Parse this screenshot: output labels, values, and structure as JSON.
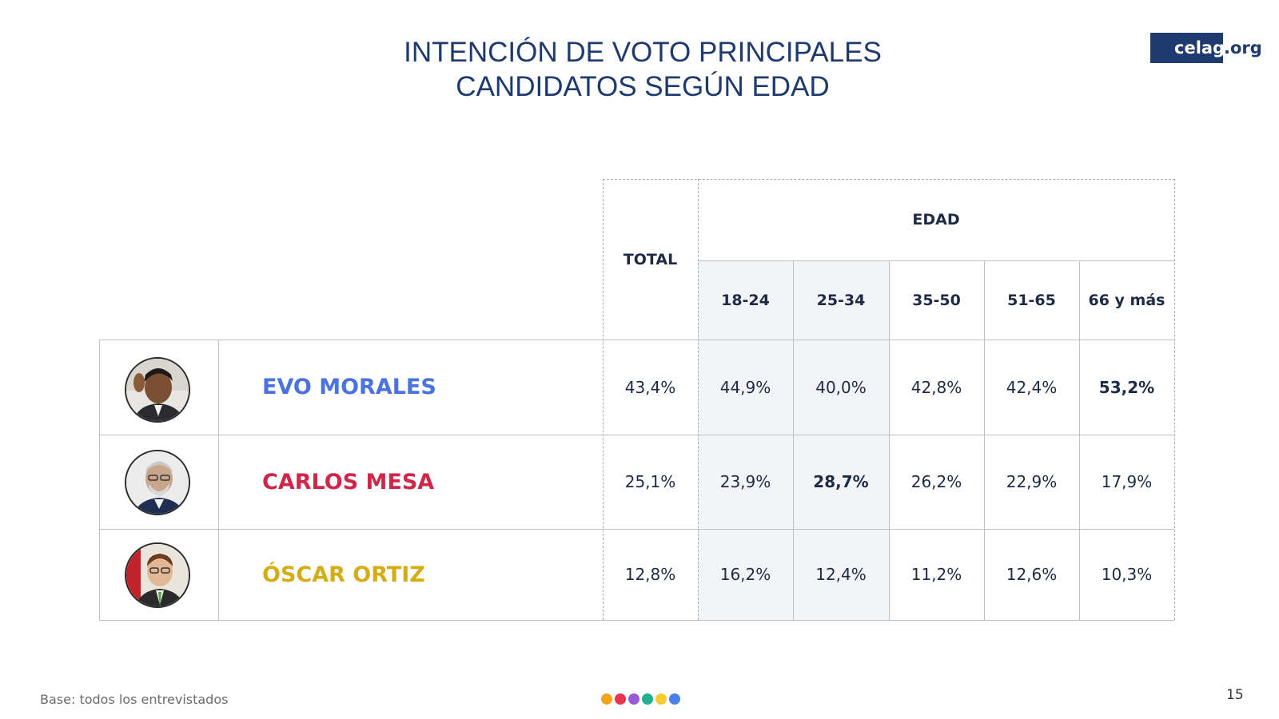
{
  "title": {
    "line1": "INTENCIÓN DE VOTO PRINCIPALES",
    "line2": "CANDIDATOS SEGÚN EDAD"
  },
  "logo": {
    "main": "celag",
    "suffix": ".org"
  },
  "table": {
    "total_header": "TOTAL",
    "group_header": "EDAD",
    "age_headers": [
      "18-24",
      "25-34",
      "35-50",
      "51-65",
      "66 y más"
    ],
    "rows": [
      {
        "name": "EVO MORALES",
        "color": "#4a72e0",
        "avatar": "evo-morales-photo",
        "total": "43,4%",
        "values": [
          "44,9%",
          "40,0%",
          "42,8%",
          "42,4%",
          "53,2%"
        ]
      },
      {
        "name": "CARLOS MESA",
        "color": "#d0264a",
        "avatar": "carlos-mesa-photo",
        "total": "25,1%",
        "values": [
          "23,9%",
          "28,7%",
          "26,2%",
          "22,9%",
          "17,9%"
        ]
      },
      {
        "name": "ÓSCAR ORTIZ",
        "color": "#d4ad12",
        "avatar": "oscar-ortiz-photo",
        "total": "12,8%",
        "values": [
          "16,2%",
          "12,4%",
          "11,2%",
          "12,6%",
          "10,3%"
        ]
      }
    ]
  },
  "footer": {
    "note": "Base: todos los entrevistados",
    "page_number": "15",
    "dot_colors": [
      "#f2a51c",
      "#e8344e",
      "#9b59d6",
      "#21b08d",
      "#f2cc30",
      "#4a7fe8"
    ]
  }
}
